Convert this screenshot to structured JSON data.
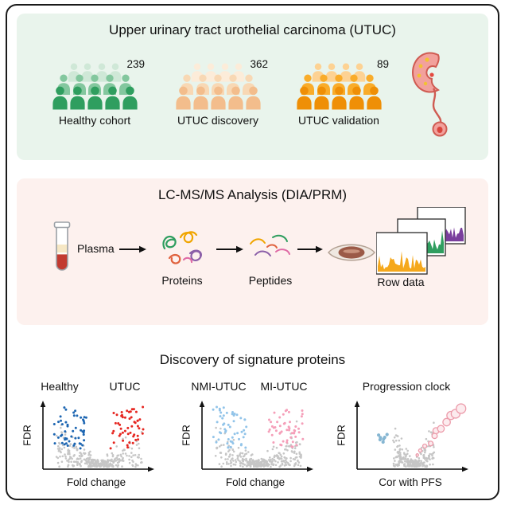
{
  "panel_cohorts": {
    "title": "Upper urinary tract urothelial carcinoma (UTUC)",
    "groups": [
      {
        "count": "239",
        "label": "Healthy cohort",
        "back": "#cfe8d7",
        "mid": "#83c79e",
        "front": "#2f9e5f"
      },
      {
        "count": "362",
        "label": "UTUC discovery",
        "back": "#fcecd9",
        "mid": "#f8d8b4",
        "front": "#f3bd8c"
      },
      {
        "count": "89",
        "label": "UTUC validation",
        "back": "#fdd293",
        "mid": "#f9ac2a",
        "front": "#ef8f06"
      }
    ]
  },
  "panel_ms": {
    "title": "LC-MS/MS Analysis (DIA/PRM)",
    "plasma_label": "Plasma",
    "proteins_label": "Proteins",
    "peptides_label": "Peptides",
    "rowdata_label": "Row data"
  },
  "panel_discovery": {
    "title": "Discovery of signature proteins"
  },
  "chart_data": [
    {
      "type": "scatter",
      "kind": "volcano",
      "seed": 5,
      "left_label": "Healthy",
      "right_label": "UTUC",
      "xlabel": "Fold change",
      "ylabel": "FDR",
      "left_color": "#1d66b2",
      "right_color": "#e62620",
      "base_color": "#c6c6c6"
    },
    {
      "type": "scatter",
      "kind": "volcano",
      "seed": 9,
      "left_label": "NMI-UTUC",
      "right_label": "MI-UTUC",
      "xlabel": "Fold change",
      "ylabel": "FDR",
      "left_color": "#92c4e9",
      "right_color": "#f59fb9",
      "base_color": "#c6c6c6"
    },
    {
      "type": "scatter",
      "kind": "progression",
      "seed": 13,
      "title": "Progression clock",
      "xlabel": "Cor with PFS",
      "ylabel": "FDR",
      "dot_color": "#86b6d2",
      "circle_color": "#ec9cab",
      "circle_fill": "#fcebee",
      "base_color": "#c6c6c6"
    }
  ],
  "colors": {
    "frame_border": "#1a1a1a",
    "panel_cohorts_bg": "#e9f4ec",
    "panel_ms_bg": "#fdf1ee",
    "trace_orange": "#f5a81c",
    "trace_green": "#2f9e5f",
    "trace_purple": "#7a3f9d"
  }
}
